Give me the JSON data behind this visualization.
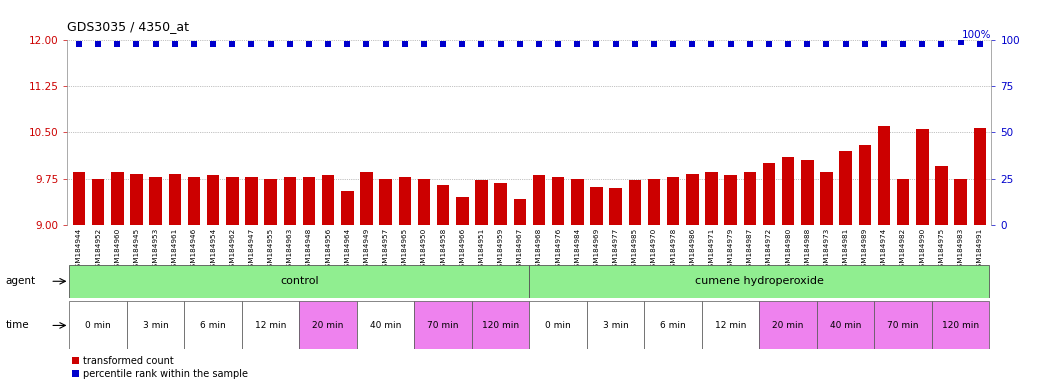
{
  "title": "GDS3035 / 4350_at",
  "samples": [
    "GSM184944",
    "GSM184952",
    "GSM184960",
    "GSM184945",
    "GSM184953",
    "GSM184961",
    "GSM184946",
    "GSM184954",
    "GSM184962",
    "GSM184947",
    "GSM184955",
    "GSM184963",
    "GSM184948",
    "GSM184956",
    "GSM184964",
    "GSM184949",
    "GSM184957",
    "GSM184965",
    "GSM184950",
    "GSM184958",
    "GSM184966",
    "GSM184951",
    "GSM184959",
    "GSM184967",
    "GSM184968",
    "GSM184976",
    "GSM184984",
    "GSM184969",
    "GSM184977",
    "GSM184985",
    "GSM184970",
    "GSM184978",
    "GSM184986",
    "GSM184971",
    "GSM184979",
    "GSM184987",
    "GSM184972",
    "GSM184980",
    "GSM184988",
    "GSM184973",
    "GSM184981",
    "GSM184989",
    "GSM184974",
    "GSM184982",
    "GSM184990",
    "GSM184975",
    "GSM184983",
    "GSM184991"
  ],
  "bar_values": [
    9.85,
    9.75,
    9.85,
    9.82,
    9.78,
    9.82,
    9.78,
    9.8,
    9.78,
    9.78,
    9.75,
    9.78,
    9.78,
    9.8,
    9.55,
    9.85,
    9.75,
    9.78,
    9.75,
    9.65,
    9.45,
    9.72,
    9.68,
    9.42,
    9.8,
    9.78,
    9.75,
    9.62,
    9.6,
    9.73,
    9.75,
    9.78,
    9.82,
    9.85,
    9.8,
    9.85,
    10.0,
    10.1,
    10.05,
    9.85,
    10.2,
    10.3,
    10.6,
    9.75,
    10.55,
    9.95,
    9.75,
    10.58
  ],
  "percentile_values": [
    98,
    98,
    98,
    98,
    98,
    98,
    98,
    98,
    98,
    98,
    98,
    98,
    98,
    98,
    98,
    98,
    98,
    98,
    98,
    98,
    98,
    98,
    98,
    98,
    98,
    98,
    98,
    98,
    98,
    98,
    98,
    98,
    98,
    98,
    98,
    98,
    98,
    98,
    98,
    98,
    98,
    98,
    98,
    98,
    98,
    98,
    99,
    98
  ],
  "bar_color": "#cc0000",
  "percentile_color": "#0000cc",
  "ylim_left": [
    9.0,
    12.0
  ],
  "ylim_right": [
    0,
    100
  ],
  "yticks_left": [
    9.0,
    9.75,
    10.5,
    11.25,
    12.0
  ],
  "yticks_right": [
    0,
    25,
    50,
    75,
    100
  ],
  "time_groups_control": [
    {
      "label": "0 min",
      "count": 3,
      "color": "#ffffff"
    },
    {
      "label": "3 min",
      "count": 3,
      "color": "#ffffff"
    },
    {
      "label": "6 min",
      "count": 3,
      "color": "#ffffff"
    },
    {
      "label": "12 min",
      "count": 3,
      "color": "#ffffff"
    },
    {
      "label": "20 min",
      "count": 3,
      "color": "#ee82ee"
    },
    {
      "label": "40 min",
      "count": 3,
      "color": "#ffffff"
    },
    {
      "label": "70 min",
      "count": 3,
      "color": "#ee82ee"
    },
    {
      "label": "120 min",
      "count": 3,
      "color": "#ee82ee"
    }
  ],
  "time_groups_treatment": [
    {
      "label": "0 min",
      "count": 3,
      "color": "#ffffff"
    },
    {
      "label": "3 min",
      "count": 3,
      "color": "#ffffff"
    },
    {
      "label": "6 min",
      "count": 3,
      "color": "#ffffff"
    },
    {
      "label": "12 min",
      "count": 3,
      "color": "#ffffff"
    },
    {
      "label": "20 min",
      "count": 3,
      "color": "#ee82ee"
    },
    {
      "label": "40 min",
      "count": 3,
      "color": "#ee82ee"
    },
    {
      "label": "70 min",
      "count": 3,
      "color": "#ee82ee"
    },
    {
      "label": "120 min",
      "count": 3,
      "color": "#ee82ee"
    }
  ],
  "dotted_line_color": "#888888",
  "legend_bar_label": "transformed count",
  "legend_dot_label": "percentile rank within the sample",
  "control_color": "#90ee90",
  "treatment_color": "#90ee90"
}
